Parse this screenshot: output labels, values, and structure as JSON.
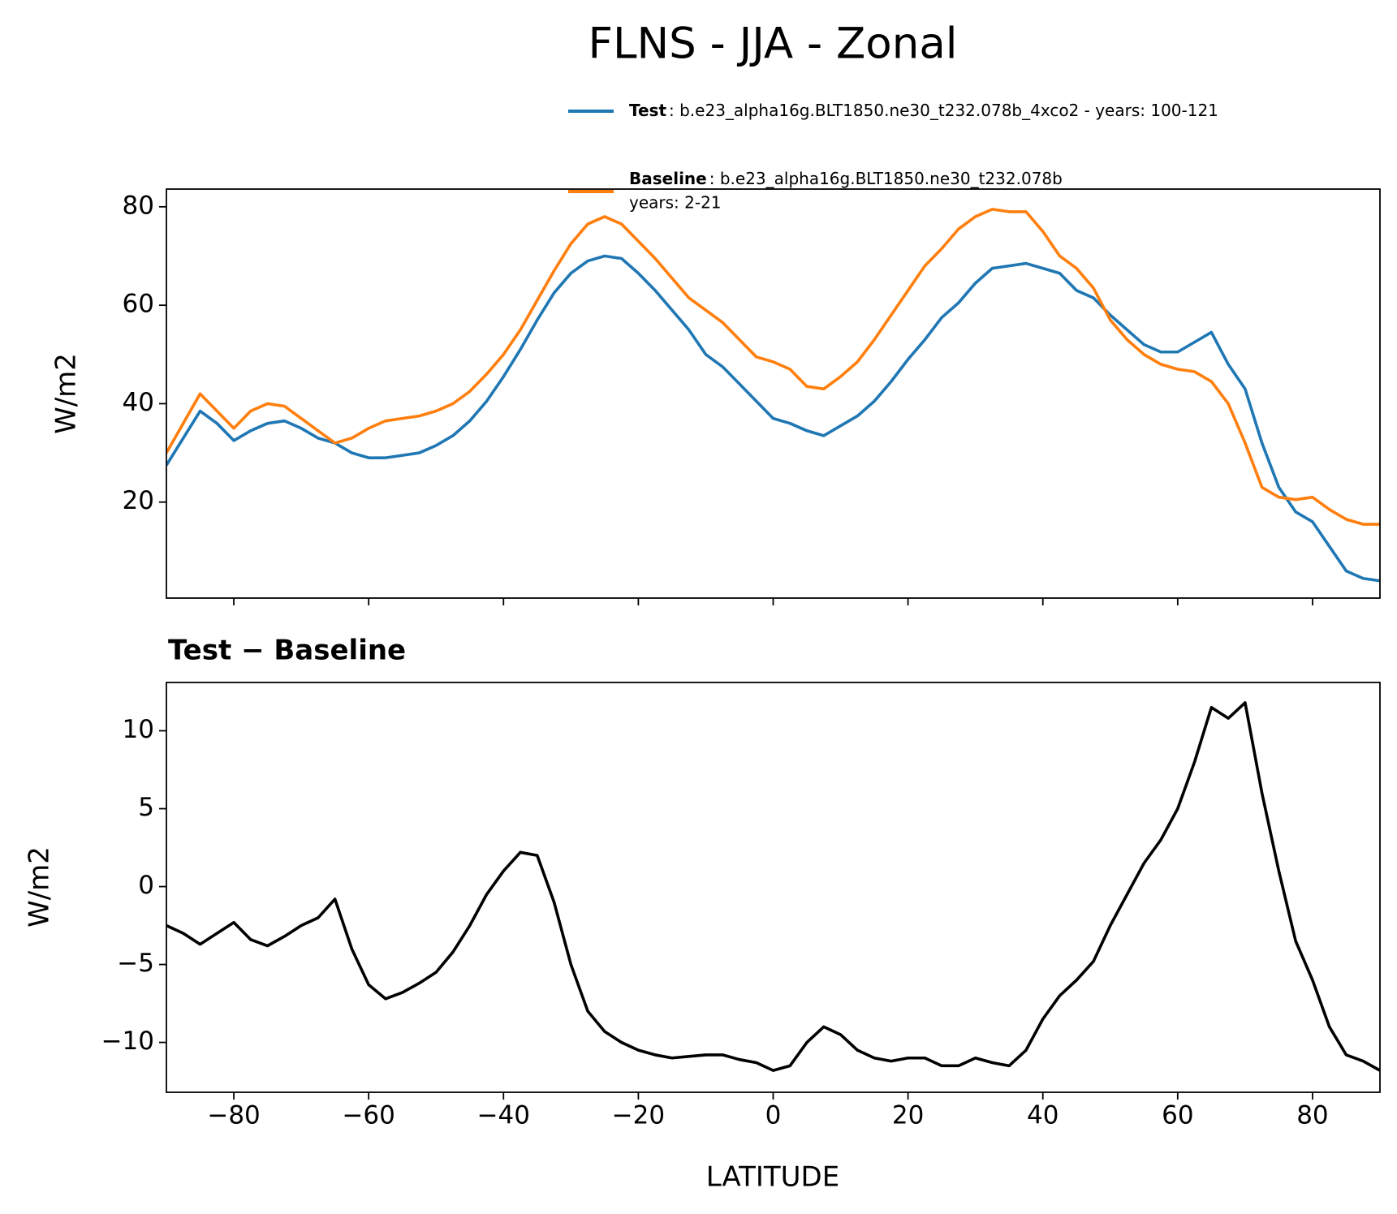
{
  "chart_data": [
    {
      "type": "line",
      "title": "FLNS - JJA - Zonal",
      "ylabel": "W/m2",
      "x": [
        -90,
        -87.5,
        -85,
        -82.5,
        -80,
        -77.5,
        -75,
        -72.5,
        -70,
        -67.5,
        -65,
        -62.5,
        -60,
        -57.5,
        -55,
        -52.5,
        -50,
        -47.5,
        -45,
        -42.5,
        -40,
        -37.5,
        -35,
        -32.5,
        -30,
        -27.5,
        -25,
        -22.5,
        -20,
        -17.5,
        -15,
        -12.5,
        -10,
        -7.5,
        -5,
        -2.5,
        0,
        2.5,
        5,
        7.5,
        10,
        12.5,
        15,
        17.5,
        20,
        22.5,
        25,
        27.5,
        30,
        32.5,
        35,
        37.5,
        40,
        42.5,
        45,
        47.5,
        50,
        52.5,
        55,
        57.5,
        60,
        62.5,
        65,
        67.5,
        70,
        72.5,
        75,
        77.5,
        80,
        82.5,
        85,
        87.5,
        90
      ],
      "series": [
        {
          "name": "Test",
          "description": [
            ": b.e23_alpha16g.BLT1850.ne30_t232.078b_4xco2 - years: 100-121"
          ],
          "color": "#1f77b4",
          "values": [
            27.5,
            33,
            38.5,
            36,
            32.5,
            34.5,
            36,
            36.5,
            35,
            33,
            32,
            30,
            29,
            29,
            29.5,
            30,
            31.5,
            33.5,
            36.5,
            40.5,
            45.5,
            51,
            57,
            62.5,
            66.5,
            69,
            70,
            69.5,
            66.5,
            63,
            59,
            55,
            50,
            47.5,
            44,
            40.5,
            37,
            36,
            34.5,
            33.5,
            35.5,
            37.5,
            40.5,
            44.5,
            49,
            53,
            57.5,
            60.5,
            64.5,
            67.5,
            68,
            68.5,
            67.5,
            66.5,
            63,
            61.5,
            58,
            55,
            52,
            50.5,
            50.5,
            52.5,
            54.5,
            48,
            43,
            32,
            23,
            18,
            16,
            11,
            6,
            4.5,
            4
          ]
        },
        {
          "name": "Baseline",
          "description": [
            ": b.e23_alpha16g.BLT1850.ne30_t232.078b",
            "years: 2-21"
          ],
          "color": "#ff7f0e",
          "values": [
            30,
            36,
            42,
            38.5,
            35,
            38.5,
            40,
            39.5,
            37,
            34.5,
            32,
            33,
            35,
            36.5,
            37,
            37.5,
            38.5,
            40,
            42.5,
            46,
            50,
            55,
            61,
            67,
            72.5,
            76.5,
            78,
            76.5,
            73,
            69.5,
            65.5,
            61.5,
            59,
            56.5,
            53,
            49.5,
            48.5,
            47,
            43.5,
            43,
            45.5,
            48.5,
            53,
            58,
            63,
            68,
            71.5,
            75.5,
            78,
            79.5,
            79,
            79,
            75,
            70,
            67.5,
            63.5,
            57,
            53,
            50,
            48,
            47,
            46.5,
            44.5,
            40,
            32,
            23,
            21,
            20.5,
            21,
            18.5,
            16.5,
            15.5,
            15.5
          ]
        }
      ],
      "xlim": [
        -90,
        90
      ],
      "xticks": [
        -80,
        -60,
        -40,
        -20,
        0,
        20,
        40,
        60,
        80
      ],
      "xtick_labels": false,
      "ylim": [
        0.5,
        83.6
      ],
      "yticks": [
        20,
        40,
        60,
        80
      ],
      "legend": "upper right"
    },
    {
      "type": "line",
      "subtitle": "Test − Baseline",
      "xlabel": "LATITUDE",
      "ylabel": "W/m2",
      "x": [
        -90,
        -87.5,
        -85,
        -82.5,
        -80,
        -77.5,
        -75,
        -72.5,
        -70,
        -67.5,
        -65,
        -62.5,
        -60,
        -57.5,
        -55,
        -52.5,
        -50,
        -47.5,
        -45,
        -42.5,
        -40,
        -37.5,
        -35,
        -32.5,
        -30,
        -27.5,
        -25,
        -22.5,
        -20,
        -17.5,
        -15,
        -12.5,
        -10,
        -7.5,
        -5,
        -2.5,
        0,
        2.5,
        5,
        7.5,
        10,
        12.5,
        15,
        17.5,
        20,
        22.5,
        25,
        27.5,
        30,
        32.5,
        35,
        37.5,
        40,
        42.5,
        45,
        47.5,
        50,
        52.5,
        55,
        57.5,
        60,
        62.5,
        65,
        67.5,
        70,
        72.5,
        75,
        77.5,
        80,
        82.5,
        85,
        87.5,
        90
      ],
      "series": [
        {
          "color": "#000000",
          "values": [
            -2.5,
            -3,
            -3.7,
            -3,
            -2.3,
            -3.4,
            -3.8,
            -3.2,
            -2.5,
            -2,
            -0.8,
            -4,
            -6.3,
            -7.2,
            -6.8,
            -6.2,
            -5.5,
            -4.2,
            -2.5,
            -0.5,
            1,
            2.2,
            2,
            -1,
            -5,
            -8,
            -9.3,
            -10,
            -10.5,
            -10.8,
            -11,
            -10.9,
            -10.8,
            -10.8,
            -11.1,
            -11.3,
            -11.8,
            -11.5,
            -10,
            -9,
            -9.5,
            -10.5,
            -11,
            -11.2,
            -11,
            -11,
            -11.5,
            -11.5,
            -11,
            -11.3,
            -11.5,
            -10.5,
            -8.5,
            -7,
            -6,
            -4.8,
            -2.5,
            -0.5,
            1.5,
            3,
            5,
            8,
            11.5,
            10.8,
            11.8,
            6,
            1,
            -3.5,
            -6,
            -9,
            -10.8,
            -11.2,
            -11.8
          ]
        }
      ],
      "xlim": [
        -90,
        90
      ],
      "xticks": [
        {
          "value": -80,
          "label": "−80"
        },
        {
          "value": -60,
          "label": "−60"
        },
        {
          "value": -40,
          "label": "−40"
        },
        {
          "value": -20,
          "label": "−20"
        },
        0,
        20,
        40,
        60,
        80
      ],
      "ylim": [
        -13.2,
        13.1
      ],
      "yticks": [
        {
          "value": -10,
          "label": "−10"
        },
        {
          "value": -5,
          "label": "−5"
        },
        0,
        5,
        10
      ]
    }
  ]
}
